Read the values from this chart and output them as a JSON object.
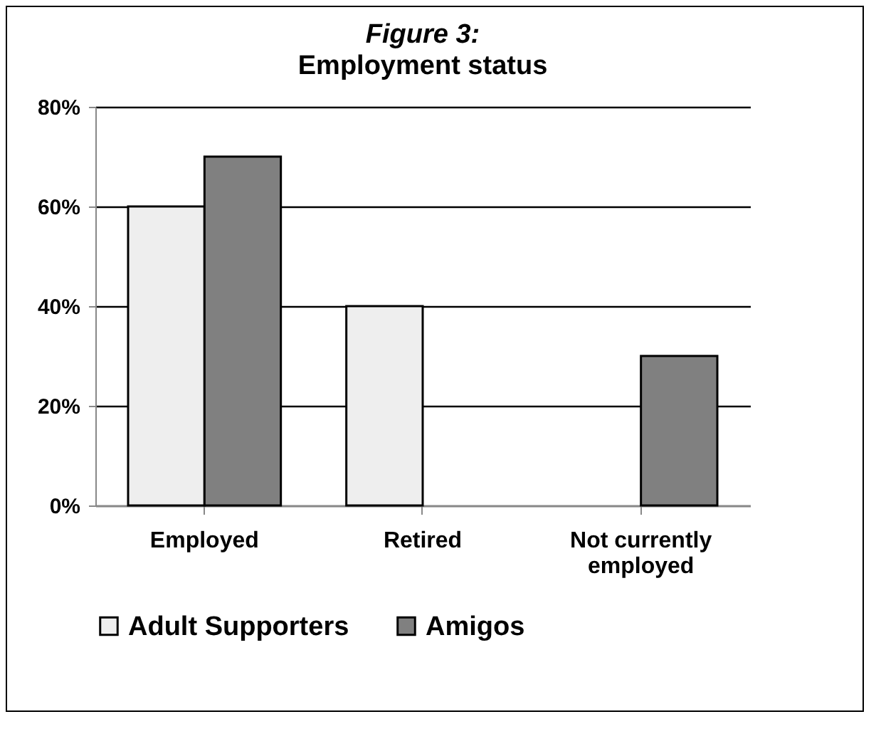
{
  "chart_data": {
    "type": "bar",
    "title": "Figure 3:",
    "subtitle": "Employment status",
    "categories": [
      "Employed",
      "Retired",
      "Not currently employed"
    ],
    "series": [
      {
        "name": "Adult Supporters",
        "color": "#eeeeee",
        "values": [
          60,
          40,
          null
        ]
      },
      {
        "name": "Amigos",
        "color": "#808080",
        "values": [
          70,
          null,
          30
        ]
      }
    ],
    "ylim": [
      0,
      80
    ],
    "yticks": [
      {
        "value": 0,
        "label": "0%"
      },
      {
        "value": 20,
        "label": "20%"
      },
      {
        "value": 40,
        "label": "40%"
      },
      {
        "value": 60,
        "label": "60%"
      },
      {
        "value": 80,
        "label": "80%"
      }
    ],
    "grid": "y",
    "legend": "bottom"
  }
}
